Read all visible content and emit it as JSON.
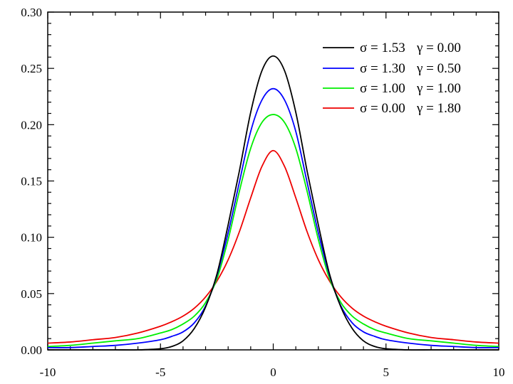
{
  "chart_data": {
    "type": "line",
    "title": "",
    "xlabel": "",
    "ylabel": "",
    "xlim": [
      -10,
      10
    ],
    "ylim": [
      0,
      0.3
    ],
    "x_ticks": [
      -10,
      -5,
      0,
      5,
      10
    ],
    "x_tick_labels": [
      "-10",
      "-5",
      "0",
      "5",
      "10"
    ],
    "y_ticks": [
      0,
      0.05,
      0.1,
      0.15,
      0.2,
      0.25,
      0.3
    ],
    "y_tick_labels": [
      "0.00",
      "0.05",
      "0.10",
      "0.15",
      "0.20",
      "0.25",
      "0.30"
    ],
    "grid": false,
    "legend_position": "top-right",
    "x": [
      -10,
      -9,
      -8,
      -7,
      -6,
      -5,
      -4.5,
      -4,
      -3.5,
      -3,
      -2.5,
      -2,
      -1.5,
      -1,
      -0.5,
      0,
      0.5,
      1,
      1.5,
      2,
      2.5,
      3,
      3.5,
      4,
      4.5,
      5,
      6,
      7,
      8,
      9,
      10
    ],
    "series": [
      {
        "name": "σ = 1.53   γ = 0.00",
        "label_parts": {
          "sigma": "σ = 1.53",
          "gamma": "γ = 0.00"
        },
        "color": "#000000",
        "values": [
          0.0,
          0.0,
          0.0,
          0.0,
          0.0,
          0.001,
          0.003,
          0.008,
          0.019,
          0.038,
          0.067,
          0.111,
          0.159,
          0.211,
          0.248,
          0.261,
          0.248,
          0.211,
          0.159,
          0.111,
          0.067,
          0.038,
          0.019,
          0.008,
          0.003,
          0.001,
          0.0,
          0.0,
          0.0,
          0.0,
          0.0
        ]
      },
      {
        "name": "σ = 1.30   γ = 0.50",
        "label_parts": {
          "sigma": "σ = 1.30",
          "gamma": "γ = 0.50"
        },
        "color": "#0000ff",
        "values": [
          0.002,
          0.002,
          0.003,
          0.004,
          0.006,
          0.009,
          0.012,
          0.016,
          0.024,
          0.039,
          0.066,
          0.104,
          0.149,
          0.194,
          0.222,
          0.232,
          0.222,
          0.194,
          0.149,
          0.104,
          0.066,
          0.039,
          0.024,
          0.016,
          0.012,
          0.009,
          0.006,
          0.004,
          0.003,
          0.002,
          0.002
        ]
      },
      {
        "name": "σ = 1.00   γ = 1.00",
        "label_parts": {
          "sigma": "σ = 1.00",
          "gamma": "γ = 1.00"
        },
        "color": "#00ee00",
        "values": [
          0.003,
          0.004,
          0.006,
          0.008,
          0.01,
          0.015,
          0.018,
          0.023,
          0.03,
          0.042,
          0.063,
          0.098,
          0.141,
          0.179,
          0.202,
          0.209,
          0.202,
          0.179,
          0.141,
          0.098,
          0.063,
          0.042,
          0.03,
          0.023,
          0.018,
          0.015,
          0.01,
          0.008,
          0.006,
          0.004,
          0.003
        ]
      },
      {
        "name": "σ = 0.00   γ = 1.80",
        "label_parts": {
          "sigma": "σ = 0.00",
          "gamma": "γ = 1.80"
        },
        "color": "#ee0000",
        "values": [
          0.006,
          0.007,
          0.009,
          0.011,
          0.015,
          0.021,
          0.025,
          0.03,
          0.037,
          0.047,
          0.061,
          0.08,
          0.105,
          0.135,
          0.163,
          0.177,
          0.163,
          0.135,
          0.105,
          0.08,
          0.061,
          0.047,
          0.037,
          0.03,
          0.025,
          0.021,
          0.015,
          0.011,
          0.009,
          0.007,
          0.006
        ]
      }
    ]
  }
}
